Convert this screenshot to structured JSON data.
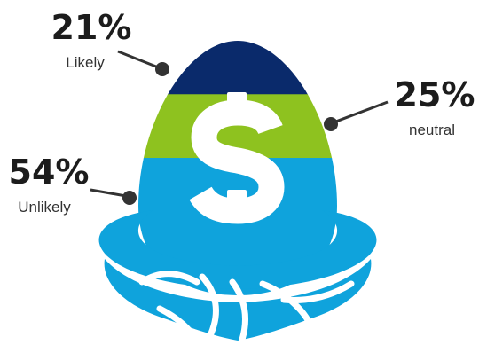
{
  "chart_data": {
    "type": "pie",
    "title": "",
    "values_unit": "%",
    "categories": [
      "Likely",
      "neutral",
      "Unlikely"
    ],
    "values": [
      21,
      25,
      54
    ],
    "labels": [
      {
        "value": "21%",
        "category": "Likely"
      },
      {
        "value": "25%",
        "category": "neutral"
      },
      {
        "value": "54%",
        "category": "Unlikely"
      }
    ],
    "colors": {
      "Likely": "#0a2a6b",
      "neutral": "#8ec21f",
      "Unlikely": "#0fa3dc"
    }
  },
  "icon": "dollar-sign-icon",
  "nest_color": "#0fa3dc",
  "leader_color": "#333333"
}
